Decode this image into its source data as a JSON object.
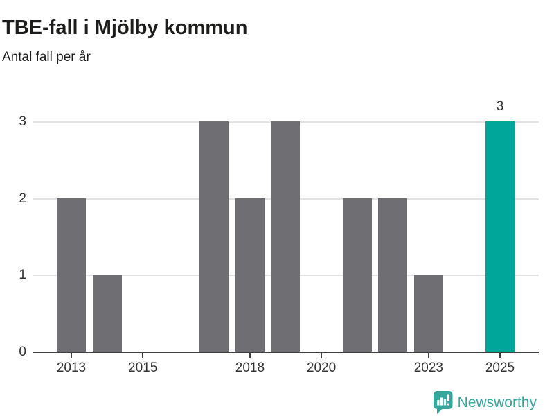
{
  "header": {
    "title": "TBE-fall i Mjölby kommun",
    "subtitle": "Antal fall per år"
  },
  "chart_data": {
    "type": "bar",
    "title": "TBE-fall i Mjölby kommun",
    "subtitle": "Antal fall per år",
    "ylabel": "Antal fall per år",
    "xlabel": "",
    "categories": [
      "2013",
      "2014",
      "2015",
      "2016",
      "2017",
      "2018",
      "2019",
      "2020",
      "2021",
      "2022",
      "2023",
      "2024",
      "2025"
    ],
    "values": [
      2,
      1,
      0,
      0,
      3,
      2,
      3,
      0,
      2,
      2,
      1,
      0,
      3
    ],
    "ylim": [
      0,
      3
    ],
    "y_ticks": [
      0,
      1,
      2,
      3
    ],
    "x_tick_labels": [
      "2013",
      "2015",
      "2018",
      "2020",
      "2023",
      "2025"
    ],
    "grid": "horizontal",
    "legend": "none",
    "highlight_index": 12,
    "value_labels": [
      {
        "index": 12,
        "text": "3"
      }
    ],
    "colors": {
      "bar_default": "#6e6e73",
      "bar_highlight": "#00a69a",
      "gridline": "#e2e2e2",
      "axis": "#404040",
      "text": "#333333"
    }
  },
  "attribution": {
    "brand": "Newsworthy",
    "icon": "newsworthy-badge",
    "color": "#35a79c"
  }
}
